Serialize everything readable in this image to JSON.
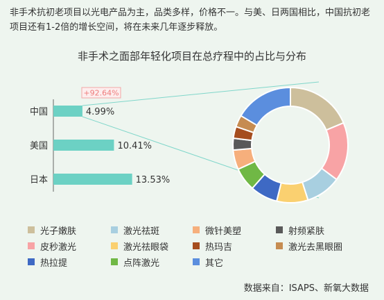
{
  "intro": "非手术抗初老项目以光电产品为主，品类多样，价格不一。与美、日两国相比，中国抗初老项目还有1-2倍的增长空间，将在未来几年逐步释放。",
  "chart_data": [
    {
      "type": "bar",
      "orientation": "horizontal",
      "categories": [
        "中国",
        "美国",
        "日本"
      ],
      "values": [
        4.99,
        10.41,
        13.53
      ],
      "value_labels": [
        "4.99%",
        "10.41%",
        "13.53%"
      ],
      "annotation": "+92.64%",
      "bar_color": "#6cd1c4"
    },
    {
      "type": "pie",
      "style": "donut",
      "title": "非手术之面部年轻化项目在总疗程中的占比与分布",
      "labels": [
        "光子嫩肤",
        "皮秒激光",
        "激光祛斑",
        "激光祛眼袋",
        "热拉提",
        "点阵激光",
        "微针美塑",
        "射频紧肤",
        "热玛吉",
        "激光去黑眼圈",
        "其它"
      ],
      "values": [
        17,
        15,
        9,
        8,
        7,
        6,
        5,
        3,
        3,
        3,
        15
      ],
      "colors": [
        "#cdbf9c",
        "#f8a3a5",
        "#a8cfe0",
        "#fad070",
        "#3e69c4",
        "#70b845",
        "#f6af7c",
        "#595959",
        "#a54d1e",
        "#c68c51",
        "#5b8ede"
      ],
      "legend_position": "bottom"
    }
  ],
  "source": "数据来自：ISAPS、新氧大数据"
}
